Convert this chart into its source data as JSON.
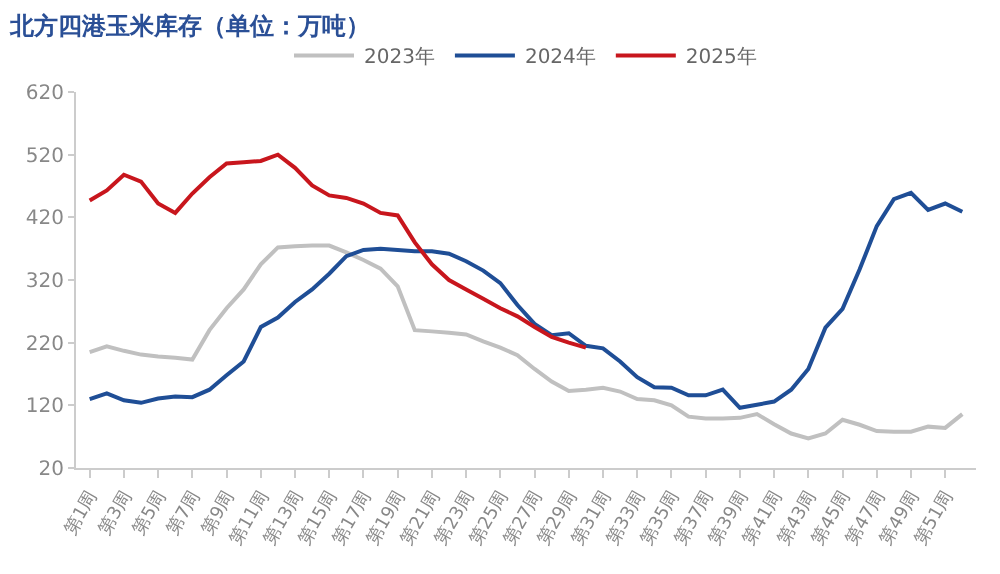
{
  "chart_data": {
    "type": "line",
    "title": "北方四港玉米库存（单位：万吨）",
    "categories": [
      "第1周",
      null,
      "第3周",
      null,
      "第5周",
      null,
      "第7周",
      null,
      "第9周",
      null,
      "第11周",
      null,
      "第13周",
      null,
      "第15周",
      null,
      "第17周",
      null,
      "第19周",
      null,
      "第21周",
      null,
      "第23周",
      null,
      "第25周",
      null,
      "第27周",
      null,
      "第29周",
      null,
      "第31周",
      null,
      "第33周",
      null,
      "第35周",
      null,
      "第37周",
      null,
      "第39周",
      null,
      "第41周",
      null,
      "第43周",
      null,
      "第45周",
      null,
      "第47周",
      null,
      "第49周",
      null,
      "第51周",
      null
    ],
    "series": [
      {
        "name": "2023年",
        "color": "#c0c0c0",
        "values": [
          205,
          214,
          207,
          201,
          198,
          196,
          193,
          240,
          275,
          305,
          345,
          372,
          374,
          375,
          375,
          364,
          352,
          338,
          310,
          240,
          238,
          236,
          233,
          222,
          212,
          200,
          178,
          158,
          143,
          145,
          148,
          142,
          130,
          128,
          120,
          102,
          99,
          99,
          100,
          106,
          90,
          75,
          67,
          75,
          97,
          89,
          79,
          78,
          78,
          86,
          84,
          106
        ]
      },
      {
        "name": "2024年",
        "color": "#1f4e96",
        "values": [
          130,
          139,
          128,
          124,
          131,
          134,
          133,
          145,
          168,
          190,
          245,
          260,
          285,
          305,
          330,
          358,
          368,
          370,
          368,
          366,
          366,
          362,
          350,
          335,
          315,
          280,
          250,
          232,
          235,
          215,
          211,
          190,
          165,
          149,
          148,
          136,
          136,
          145,
          116,
          121,
          126,
          145,
          178,
          244,
          274,
          337,
          406,
          449,
          459,
          432,
          442,
          429
        ]
      },
      {
        "name": "2025年",
        "color": "#c8161d",
        "values": [
          447,
          463,
          488,
          477,
          442,
          427,
          458,
          484,
          506,
          508,
          510,
          520,
          499,
          471,
          455,
          451,
          442,
          427,
          423,
          380,
          345,
          320,
          305,
          290,
          275,
          262,
          245,
          229,
          220,
          212,
          null,
          null,
          null,
          null,
          null,
          null,
          null,
          null,
          null,
          null,
          null,
          null,
          null,
          null,
          null,
          null,
          null,
          null,
          null,
          null,
          null,
          null
        ]
      }
    ],
    "ylim": [
      20,
      620
    ],
    "yticks": [
      20,
      120,
      220,
      320,
      420,
      520,
      620
    ],
    "legend": "top",
    "marker": "none",
    "line_style": "solid"
  }
}
